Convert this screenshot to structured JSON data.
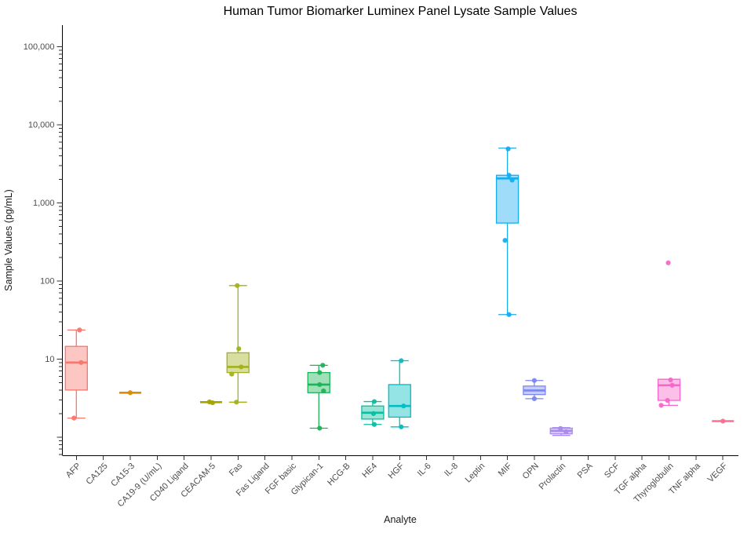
{
  "title": "Human Tumor Biomarker Luminex Panel Lysate Sample Values",
  "chart_data": {
    "type": "box",
    "title": "Human Tumor Biomarker Luminex Panel Lysate Sample Values",
    "xlabel": "Analyte",
    "ylabel": "Sample Values (pg/mL)",
    "y_scale": "log10",
    "ylim": [
      0.6,
      180000
    ],
    "grid": false,
    "legend": "none",
    "y_ticks": [
      {
        "value": 100000,
        "label": "100,000"
      },
      {
        "value": 10000,
        "label": "10,000"
      },
      {
        "value": 1000,
        "label": "1,000"
      },
      {
        "value": 100,
        "label": "100"
      },
      {
        "value": 10,
        "label": "10"
      }
    ],
    "categories": [
      "AFP",
      "CA125",
      "CA15-3",
      "CA19-9 (U/mL)",
      "CD40 Ligand",
      "CEACAM-5",
      "Fas",
      "Fas Ligand",
      "FGF basic",
      "Glypican-1",
      "HCG-B",
      "HE4",
      "HGF",
      "IL-6",
      "IL-8",
      "Leptin",
      "MIF",
      "OPN",
      "Prolactin",
      "PSA",
      "SCF",
      "TGF alpha",
      "Thyroglobulin",
      "TNF alpha",
      "VEGF"
    ],
    "series": [
      {
        "analyte": "AFP",
        "color": "#F8766D",
        "box": {
          "lo": 1.75,
          "q1": 4.0,
          "med": 9.0,
          "q3": 14.5,
          "hi": 23.5
        },
        "points": [
          {
            "v": 23.5,
            "dx": 4
          },
          {
            "v": 9.0,
            "dx": 6
          },
          {
            "v": 1.75,
            "dx": -3
          }
        ]
      },
      {
        "analyte": "CA125",
        "color": null,
        "box": null,
        "points": []
      },
      {
        "analyte": "CA15-3",
        "color": "#DB8E00",
        "box": {
          "lo": 3.7,
          "q1": 3.7,
          "med": 3.7,
          "q3": 3.7,
          "hi": 3.7
        },
        "points": [
          {
            "v": 3.7,
            "dx": 0
          }
        ]
      },
      {
        "analyte": "CA19-9 (U/mL)",
        "color": null,
        "box": null,
        "points": []
      },
      {
        "analyte": "CD40 Ligand",
        "color": null,
        "box": null,
        "points": []
      },
      {
        "analyte": "CEACAM-5",
        "color": "#A3A500",
        "box": {
          "lo": 2.8,
          "q1": 2.8,
          "med": 2.8,
          "q3": 2.8,
          "hi": 2.8
        },
        "points": [
          {
            "v": 2.82,
            "dx": -2
          },
          {
            "v": 2.75,
            "dx": 2
          }
        ]
      },
      {
        "analyte": "Fas",
        "color": "#A2B11C",
        "box": {
          "lo": 2.8,
          "q1": 6.7,
          "med": 7.9,
          "q3": 12,
          "hi": 87
        },
        "points": [
          {
            "v": 87,
            "dx": -1
          },
          {
            "v": 13.5,
            "dx": 1
          },
          {
            "v": 7.9,
            "dx": 4
          },
          {
            "v": 6.4,
            "dx": -8
          },
          {
            "v": 2.8,
            "dx": -2
          }
        ]
      },
      {
        "analyte": "Fas Ligand",
        "color": null,
        "box": null,
        "points": []
      },
      {
        "analyte": "FGF basic",
        "color": null,
        "box": null,
        "points": []
      },
      {
        "analyte": "Glypican-1",
        "color": "#1CB457",
        "box": {
          "lo": 1.3,
          "q1": 3.7,
          "med": 4.7,
          "q3": 6.7,
          "hi": 8.3
        },
        "points": [
          {
            "v": 8.3,
            "dx": 5
          },
          {
            "v": 6.7,
            "dx": 1
          },
          {
            "v": 4.7,
            "dx": 1
          },
          {
            "v": 3.9,
            "dx": 6
          },
          {
            "v": 1.3,
            "dx": 1
          }
        ]
      },
      {
        "analyte": "HCG-B",
        "color": null,
        "box": null,
        "points": []
      },
      {
        "analyte": "HE4",
        "color": "#0ABEA0",
        "box": {
          "lo": 1.45,
          "q1": 1.7,
          "med": 2.05,
          "q3": 2.5,
          "hi": 2.85
        },
        "points": [
          {
            "v": 2.85,
            "dx": 2
          },
          {
            "v": 2.0,
            "dx": 1
          },
          {
            "v": 1.45,
            "dx": 2
          }
        ]
      },
      {
        "analyte": "HGF",
        "color": "#00BFC4",
        "box": {
          "lo": 1.35,
          "q1": 1.8,
          "med": 2.5,
          "q3": 4.7,
          "hi": 9.5
        },
        "points": [
          {
            "v": 9.5,
            "dx": 2
          },
          {
            "v": 2.5,
            "dx": 5
          },
          {
            "v": 1.35,
            "dx": 2
          }
        ]
      },
      {
        "analyte": "IL-6",
        "color": null,
        "box": null,
        "points": []
      },
      {
        "analyte": "IL-8",
        "color": null,
        "box": null,
        "points": []
      },
      {
        "analyte": "Leptin",
        "color": null,
        "box": null,
        "points": []
      },
      {
        "analyte": "MIF",
        "color": "#18ACF0",
        "box": {
          "lo": 37,
          "q1": 550,
          "med": 2050,
          "q3": 2250,
          "hi": 5000
        },
        "points": [
          {
            "v": 4900,
            "dx": 1
          },
          {
            "v": 2250,
            "dx": 2
          },
          {
            "v": 1950,
            "dx": 6
          },
          {
            "v": 330,
            "dx": -3
          },
          {
            "v": 37,
            "dx": 2
          }
        ]
      },
      {
        "analyte": "OPN",
        "color": "#7B87EE",
        "box": {
          "lo": 3.1,
          "q1": 3.5,
          "med": 3.95,
          "q3": 4.5,
          "hi": 5.3
        },
        "points": [
          {
            "v": 5.3,
            "dx": 0
          },
          {
            "v": 3.1,
            "dx": 0
          }
        ]
      },
      {
        "analyte": "Prolactin",
        "color": "#A98AEE",
        "box": {
          "lo": 1.05,
          "q1": 1.1,
          "med": 1.2,
          "q3": 1.3,
          "hi": 1.32
        },
        "points": [
          {
            "v": 1.29,
            "dx": -1
          },
          {
            "v": 1.17,
            "dx": 6
          }
        ]
      },
      {
        "analyte": "PSA",
        "color": null,
        "box": null,
        "points": []
      },
      {
        "analyte": "SCF",
        "color": null,
        "box": null,
        "points": []
      },
      {
        "analyte": "TGF alpha",
        "color": null,
        "box": null,
        "points": []
      },
      {
        "analyte": "Thyroglobulin",
        "color": "#F767C9",
        "box": {
          "lo": 2.55,
          "q1": 2.95,
          "med": 4.6,
          "q3": 5.5,
          "hi": 5.5
        },
        "points": [
          {
            "v": 170,
            "dx": -1
          },
          {
            "v": 5.4,
            "dx": 2
          },
          {
            "v": 4.6,
            "dx": 4
          },
          {
            "v": 2.95,
            "dx": -2
          },
          {
            "v": 2.55,
            "dx": -10
          }
        ]
      },
      {
        "analyte": "TNF alpha",
        "color": null,
        "box": null,
        "points": []
      },
      {
        "analyte": "VEGF",
        "color": "#F8708F",
        "box": {
          "lo": 1.6,
          "q1": 1.6,
          "med": 1.6,
          "q3": 1.6,
          "hi": 1.6
        },
        "points": [
          {
            "v": 1.6,
            "dx": 0
          }
        ]
      }
    ]
  }
}
